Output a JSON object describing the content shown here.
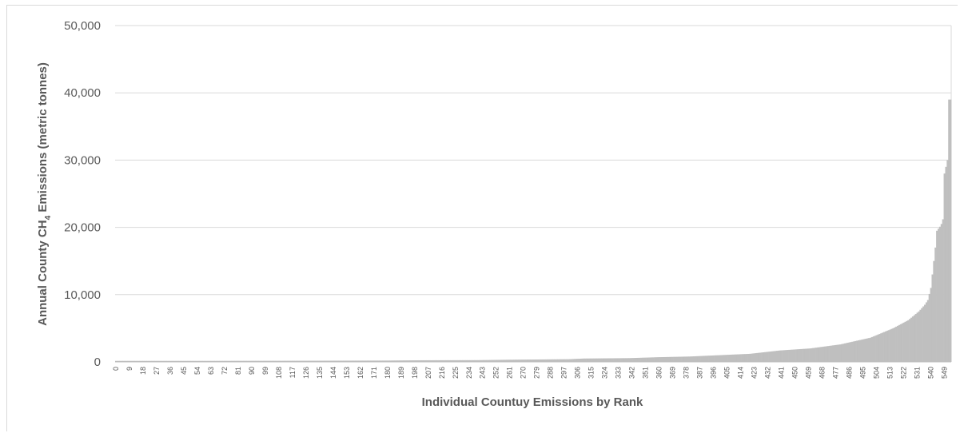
{
  "chart_data": {
    "type": "bar",
    "title": "",
    "xlabel": "Individual Countuy Emissions by Rank",
    "ylabel": {
      "prefix": "Annual County CH",
      "subscript": "4",
      "suffix": " Emissions (metric tonnes)"
    },
    "ylim": [
      0,
      50000
    ],
    "y_ticks": [
      "0",
      "10,000",
      "20,000",
      "30,000",
      "40,000",
      "50,000"
    ],
    "y_tick_values": [
      0,
      10000,
      20000,
      30000,
      40000,
      50000
    ],
    "x_tick_step": 9,
    "x_count": 554,
    "grid": true,
    "legend": "none",
    "bar_color": "#bfbfbf",
    "grid_color": "#d9d9d9",
    "series": [
      {
        "profile": [
          [
            0,
            150
          ],
          [
            60,
            150
          ],
          [
            120,
            170
          ],
          [
            180,
            200
          ],
          [
            200,
            240
          ],
          [
            240,
            260
          ],
          [
            260,
            320
          ],
          [
            300,
            400
          ],
          [
            310,
            500
          ],
          [
            340,
            560
          ],
          [
            360,
            700
          ],
          [
            380,
            800
          ],
          [
            400,
            1000
          ],
          [
            420,
            1200
          ],
          [
            440,
            1700
          ],
          [
            460,
            2000
          ],
          [
            480,
            2600
          ],
          [
            500,
            3600
          ],
          [
            515,
            5000
          ],
          [
            525,
            6200
          ],
          [
            532,
            7500
          ],
          [
            536,
            8500
          ],
          [
            538,
            9200
          ],
          [
            540,
            11000
          ],
          [
            541,
            13000
          ],
          [
            542,
            15000
          ],
          [
            543,
            17000
          ],
          [
            544,
            19500
          ],
          [
            545,
            19800
          ],
          [
            546,
            20100
          ],
          [
            547,
            20500
          ],
          [
            548,
            21200
          ],
          [
            549,
            28000
          ],
          [
            550,
            29000
          ],
          [
            551,
            30000
          ],
          [
            552,
            39000
          ],
          [
            553,
            39000
          ]
        ]
      }
    ]
  }
}
